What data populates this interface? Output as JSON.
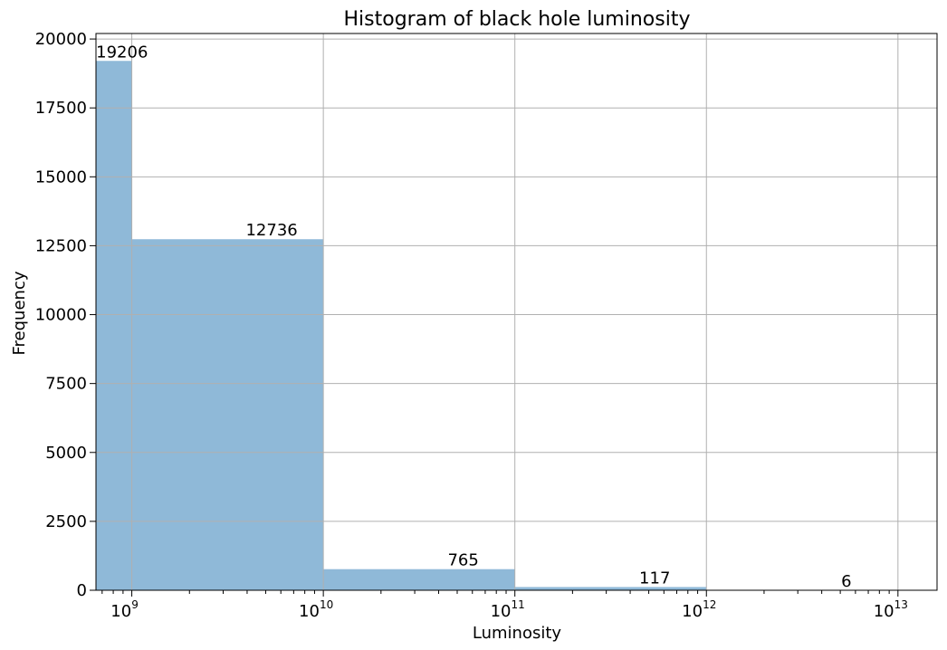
{
  "chart_data": {
    "type": "bar",
    "title": "Histogram of black hole luminosity",
    "xlabel": "Luminosity",
    "ylabel": "Frequency",
    "xscale": "log",
    "bin_edges": [
      100000000.0,
      1000000000.0,
      10000000000.0,
      100000000000.0,
      1000000000000.0,
      10000000000000.0
    ],
    "values": [
      19206,
      12736,
      765,
      117,
      6
    ],
    "bar_labels": [
      "19206",
      "12736",
      "765",
      "117",
      "6"
    ],
    "bar_color": "#8fb9d8",
    "xlim": [
      650000000.0,
      16000000000000.0
    ],
    "ylim": [
      0,
      20200
    ],
    "yticks": [
      0,
      2500,
      5000,
      7500,
      10000,
      12500,
      15000,
      17500,
      20000
    ],
    "ytick_labels": [
      "0",
      "2500",
      "5000",
      "7500",
      "10000",
      "12500",
      "15000",
      "17500",
      "20000"
    ],
    "xticks_major": [
      {
        "value": 1000000000.0,
        "base": "10",
        "exp": "9"
      },
      {
        "value": 10000000000.0,
        "base": "10",
        "exp": "10"
      },
      {
        "value": 100000000000.0,
        "base": "10",
        "exp": "11"
      },
      {
        "value": 1000000000000.0,
        "base": "10",
        "exp": "12"
      },
      {
        "value": 10000000000000.0,
        "base": "10",
        "exp": "13"
      }
    ],
    "grid": true,
    "grid_color": "#b0b0b0",
    "legend": "none"
  }
}
